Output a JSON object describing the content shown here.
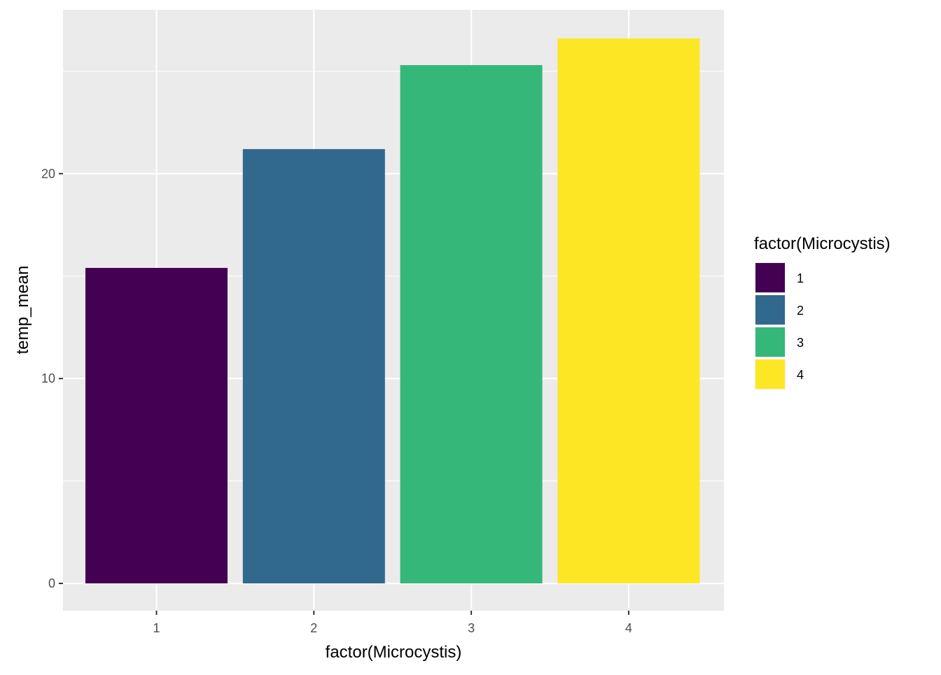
{
  "chart_data": {
    "type": "bar",
    "categories": [
      "1",
      "2",
      "3",
      "4"
    ],
    "values": [
      15.4,
      21.2,
      25.3,
      26.6
    ],
    "colors": [
      "#440154",
      "#31688E",
      "#35B779",
      "#FDE725"
    ],
    "xlabel": "factor(Microcystis)",
    "ylabel": "temp_mean",
    "ylim": [
      -1.33,
      28.0
    ],
    "yticks": [
      0,
      10,
      20
    ],
    "yticks_minor": [
      5,
      15,
      25
    ],
    "grid": true,
    "panel_background": "#EBEBEB",
    "grid_color": "#FFFFFF",
    "legend": {
      "title": "factor(Microcystis)",
      "position": "right",
      "entries": [
        "1",
        "2",
        "3",
        "4"
      ]
    }
  }
}
